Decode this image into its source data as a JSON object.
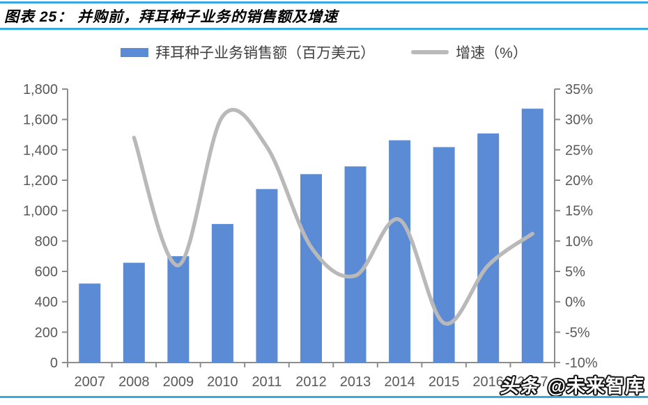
{
  "header": {
    "title": "图表 25： 并购前，拜耳种子业务的销售额及增速"
  },
  "legend": {
    "bar_label": "拜耳种子业务销售额（百万美元）",
    "line_label": "增速（%）"
  },
  "watermark": {
    "prefix": "头条",
    "handle": "@未来智库"
  },
  "colors": {
    "bar": "#5B8BD5",
    "line": "#B9B9B9",
    "axis": "#8C8C8C",
    "tick_text": "#595959",
    "rule": "#36A9E1"
  },
  "chart_data": {
    "type": "bar",
    "subtype": "bar+line-combo",
    "title": "并购前，拜耳种子业务的销售额及增速",
    "categories": [
      "2007",
      "2008",
      "2009",
      "2010",
      "2011",
      "2012",
      "2013",
      "2014",
      "2015",
      "2016",
      "2017"
    ],
    "series": [
      {
        "name": "拜耳种子业务销售额（百万美元）",
        "type": "bar",
        "axis": "left",
        "values": [
          520,
          657,
          700,
          912,
          1142,
          1240,
          1291,
          1463,
          1418,
          1508,
          1671
        ]
      },
      {
        "name": "增速（%）",
        "type": "line",
        "axis": "right",
        "values": [
          null,
          27,
          6,
          30.5,
          25.5,
          9,
          4.3,
          13.5,
          -3.5,
          6,
          11.2
        ]
      }
    ],
    "left_axis": {
      "min": 0,
      "max": 1800,
      "step": 200,
      "labels": [
        "0",
        "200",
        "400",
        "600",
        "800",
        "1,000",
        "1,200",
        "1,400",
        "1,600",
        "1,800"
      ]
    },
    "right_axis": {
      "min": -10,
      "max": 35,
      "step": 5,
      "labels": [
        "-10%",
        "-5%",
        "0%",
        "5%",
        "10%",
        "15%",
        "20%",
        "25%",
        "30%",
        "35%"
      ]
    },
    "grid": false,
    "legend_position": "top",
    "line_smooth": true
  }
}
